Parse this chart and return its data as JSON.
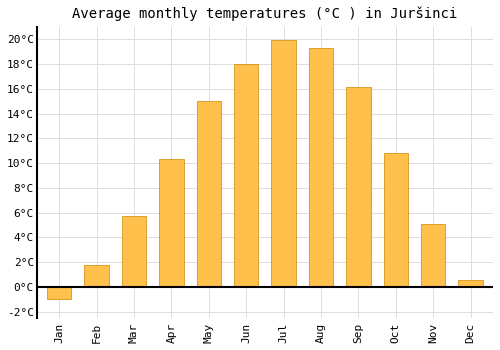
{
  "title": "Average monthly temperatures (°C ) in Juršinci",
  "months": [
    "Jan",
    "Feb",
    "Mar",
    "Apr",
    "May",
    "Jun",
    "Jul",
    "Aug",
    "Sep",
    "Oct",
    "Nov",
    "Dec"
  ],
  "values": [
    -1.0,
    1.8,
    5.7,
    10.3,
    15.0,
    18.0,
    19.9,
    19.3,
    16.1,
    10.8,
    5.1,
    0.6
  ],
  "bar_color": "#FFC04C",
  "bar_edge_color": "#CC8800",
  "ylim": [
    -2.5,
    21.0
  ],
  "yticks": [
    -2,
    0,
    2,
    4,
    6,
    8,
    10,
    12,
    14,
    16,
    18,
    20
  ],
  "ytick_labels": [
    "-2°C",
    "0°C",
    "2°C",
    "4°C",
    "6°C",
    "8°C",
    "10°C",
    "12°C",
    "14°C",
    "16°C",
    "18°C",
    "20°C"
  ],
  "background_color": "#ffffff",
  "grid_color": "#dddddd",
  "title_fontsize": 10,
  "tick_fontsize": 8,
  "font_family": "monospace"
}
